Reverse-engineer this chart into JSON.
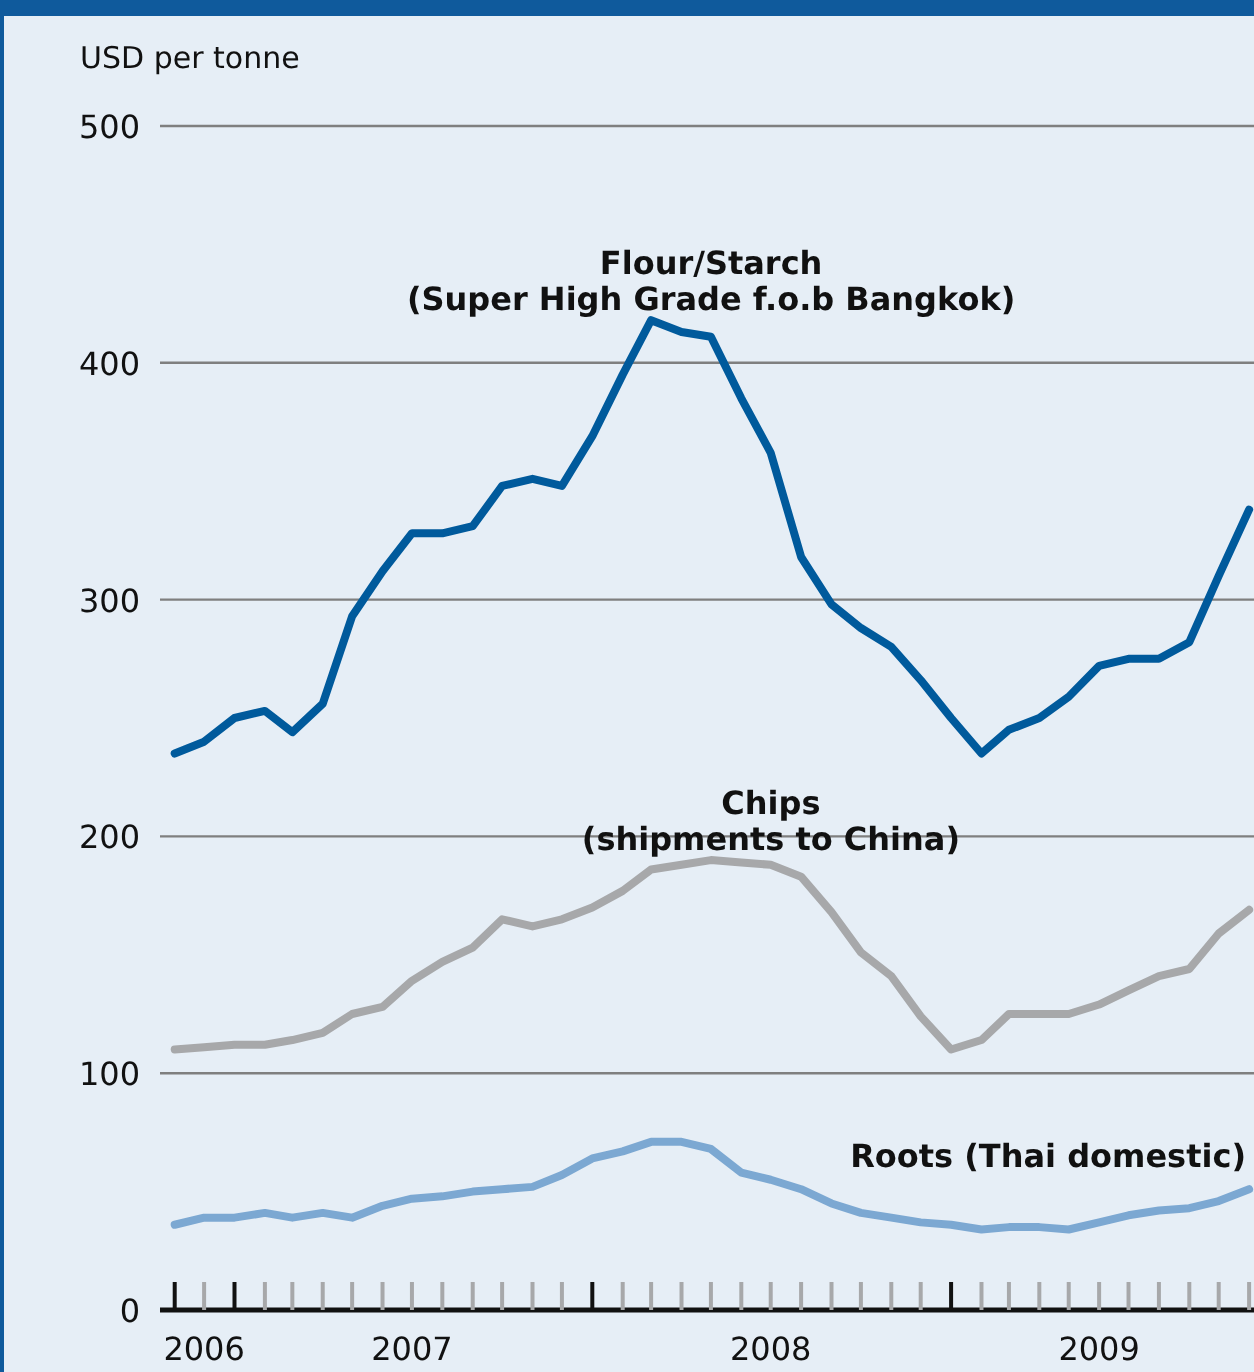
{
  "chart_data": {
    "type": "line",
    "ylabel": "USD per tonne",
    "x": [
      "2006-11",
      "2006-12",
      "2007-01",
      "2007-02",
      "2007-03",
      "2007-04",
      "2007-05",
      "2007-06",
      "2007-07",
      "2007-08",
      "2007-09",
      "2007-10",
      "2007-11",
      "2007-12",
      "2008-01",
      "2008-02",
      "2008-03",
      "2008-04",
      "2008-05",
      "2008-06",
      "2008-07",
      "2008-08",
      "2008-09",
      "2008-10",
      "2008-11",
      "2008-12",
      "2009-01",
      "2009-02",
      "2009-03",
      "2009-04",
      "2009-05",
      "2009-06",
      "2009-07",
      "2009-08",
      "2009-09",
      "2009-10",
      "2009-11"
    ],
    "series": [
      {
        "name": "Flour/Starch\n(Super High Grade f.o.b Bangkok)",
        "color": "#005a9c",
        "values": [
          235,
          240,
          250,
          253,
          244,
          256,
          293,
          312,
          328,
          328,
          331,
          348,
          351,
          348,
          369,
          395,
          418,
          413,
          411,
          385,
          362,
          318,
          298,
          288,
          280,
          266,
          250,
          235,
          245,
          250,
          259,
          272,
          275,
          275,
          282,
          310,
          338
        ]
      },
      {
        "name": "Chips\n(shipments to China)",
        "color": "#a7a8aa",
        "values": [
          110,
          111,
          112,
          112,
          114,
          117,
          125,
          128,
          139,
          147,
          153,
          165,
          162,
          165,
          170,
          177,
          186,
          188,
          190,
          189,
          188,
          183,
          168,
          151,
          141,
          124,
          110,
          114,
          125,
          125,
          125,
          129,
          135,
          141,
          144,
          159,
          169
        ]
      },
      {
        "name": "Roots (Thai domestic)",
        "color": "#7ca8d2",
        "values": [
          36,
          39,
          39,
          41,
          39,
          41,
          39,
          44,
          47,
          48,
          50,
          51,
          52,
          57,
          64,
          67,
          71,
          71,
          68,
          58,
          55,
          51,
          45,
          41,
          39,
          37,
          36,
          34,
          35,
          35,
          34,
          37,
          40,
          42,
          43,
          46,
          51
        ]
      }
    ],
    "xlim": [
      "2006-10-17",
      "2009-11-06"
    ],
    "xticks": [
      {
        "value": "2006-11",
        "label": null
      },
      {
        "value": "2006-12",
        "label": null
      },
      {
        "value": "2007-01",
        "label": null
      },
      {
        "value": "2007-02",
        "label": null
      },
      {
        "value": "2007-03",
        "label": null
      },
      {
        "value": "2007-04",
        "label": null
      },
      {
        "value": "2007-05",
        "label": null
      },
      {
        "value": "2007-06",
        "label": null
      },
      {
        "value": "2007-07",
        "label": null
      },
      {
        "value": "2007-08",
        "label": null
      },
      {
        "value": "2007-09",
        "label": null
      },
      {
        "value": "2007-10",
        "label": null
      },
      {
        "value": "2007-11",
        "label": null
      },
      {
        "value": "2007-12",
        "label": null
      },
      {
        "value": "2008-01",
        "label": null
      },
      {
        "value": "2008-02",
        "label": null
      },
      {
        "value": "2008-03",
        "label": null
      },
      {
        "value": "2008-04",
        "label": null
      },
      {
        "value": "2008-05",
        "label": null
      },
      {
        "value": "2008-06",
        "label": null
      },
      {
        "value": "2008-07",
        "label": null
      },
      {
        "value": "2008-08",
        "label": null
      },
      {
        "value": "2008-09",
        "label": null
      },
      {
        "value": "2008-10",
        "label": null
      },
      {
        "value": "2008-11",
        "label": null
      },
      {
        "value": "2008-12",
        "label": null
      },
      {
        "value": "2009-01",
        "label": null
      },
      {
        "value": "2009-02",
        "label": null
      },
      {
        "value": "2009-03",
        "label": null
      },
      {
        "value": "2009-04",
        "label": null
      },
      {
        "value": "2009-05",
        "label": null
      },
      {
        "value": "2009-06",
        "label": null
      },
      {
        "value": "2009-07",
        "label": null
      },
      {
        "value": "2009-08",
        "label": null
      },
      {
        "value": "2009-09",
        "label": null
      },
      {
        "value": "2009-10",
        "label": null
      },
      {
        "value": "2009-11",
        "label": null
      },
      {
        "value": "2006-12",
        "label": "2006"
      },
      {
        "value": "2007-07",
        "label": "2007"
      },
      {
        "value": "2008-07",
        "label": "2008"
      },
      {
        "value": "2009-06",
        "label": "2009"
      }
    ],
    "ylim": [
      0,
      500
    ],
    "yticks": [
      0,
      100,
      200,
      300,
      400,
      500
    ],
    "grid": "y",
    "marker": "none",
    "line_style": "solid"
  }
}
